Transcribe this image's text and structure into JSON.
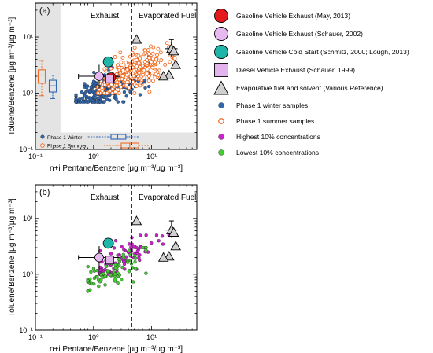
{
  "colors": {
    "exhaust_may": "#e41a1c",
    "exhaust_schauer2002": "#e8b8f0",
    "cold_start": "#1fb5a8",
    "diesel": "#e3b3ee",
    "evap": "#d0d0d0",
    "winter": "#2f67b1",
    "summer": "#f26b21",
    "highest": "#cc22cc",
    "lowest": "#44cc33",
    "shade": "#e4e4e4"
  },
  "legend": [
    {
      "label": "Gasoline Vehicle Exhaust (May, 2013)",
      "symbol": "circle-large",
      "color": "#e41a1c"
    },
    {
      "label": "Gasoline Vehicle Exhaust (Schauer, 2002)",
      "symbol": "circle-large",
      "color": "#e8b8f0"
    },
    {
      "label": "Gasoline Vehicle Cold Start (Schmitz, 2000; Lough, 2013)",
      "symbol": "circle-large",
      "color": "#1fb5a8"
    },
    {
      "label": "Diesel Vehicle Exhaust (Schauer, 1999)",
      "symbol": "square",
      "color": "#e3b3ee"
    },
    {
      "label": "Evaporative fuel and solvent (Various Reference)",
      "symbol": "triangle",
      "color": "#d0d0d0"
    },
    {
      "label": "Phase 1 winter samples",
      "symbol": "dot-filled",
      "color": "#2f67b1"
    },
    {
      "label": "Phase 1 summer samples",
      "symbol": "dot-open",
      "color": "#f26b21"
    },
    {
      "label": "Highest 10% concentrations",
      "symbol": "dot-filled",
      "color": "#cc22cc"
    },
    {
      "label": "Lowest 10% concentrations",
      "symbol": "dot-filled",
      "color": "#44cc33"
    }
  ],
  "chart_data": [
    {
      "panel_label": "(a)",
      "type": "scatter",
      "xlabel": "n+i Pentane/Benzene [μg m⁻³/μg m⁻³]",
      "ylabel": "Toluene/Benzene [μg m⁻³/μg m⁻³]",
      "xscale": "log",
      "yscale": "log",
      "xlim": [
        0.1,
        60
      ],
      "ylim": [
        0.1,
        40
      ],
      "x_ticks": [
        "10⁻¹",
        "10⁰",
        "10¹"
      ],
      "y_ticks": [
        "10⁻¹",
        "10⁰",
        "10¹"
      ],
      "divider_x": 4.5,
      "region_labels": [
        "Exhaust",
        "Evaporated Fuel"
      ],
      "inset_legend": [
        "Phase 1 Winter",
        "Phase 1 Summer"
      ],
      "sources": {
        "exhaust_may": {
          "x": 2.0,
          "y": 1.9
        },
        "exhaust_schauer2002": {
          "x": 1.25,
          "y": 2.0,
          "xerr": [
            0.55,
            2.8
          ],
          "yerr": [
            1.2,
            3.2
          ]
        },
        "cold_start": {
          "x": 1.8,
          "y": 3.6
        },
        "diesel": {
          "x": 1.9,
          "y": 1.8
        },
        "evap": [
          {
            "x": 5.5,
            "y": 9.0
          },
          {
            "x": 22,
            "y": 6.2,
            "xerr": [
              17,
              28
            ],
            "yerr": [
              4.5,
              9.0
            ]
          },
          {
            "x": 24,
            "y": 5.6
          },
          {
            "x": 26,
            "y": 3.2
          },
          {
            "x": 20,
            "y": 2.1
          },
          {
            "x": 16,
            "y": 2.0
          }
        ]
      },
      "box_stats": {
        "y_summer": {
          "min": 0.9,
          "q1": 1.5,
          "median": 2.1,
          "q3": 2.6,
          "max": 3.8
        },
        "y_winter": {
          "min": 0.8,
          "q1": 1.05,
          "median": 1.35,
          "q3": 1.7,
          "max": 2.1
        },
        "x_winter": {
          "min": 0.8,
          "q1": 2.0,
          "median": 2.6,
          "q3": 3.6,
          "max": 6.0
        },
        "x_summer": {
          "min": 1.5,
          "q1": 3.0,
          "median": 4.2,
          "q3": 6.0,
          "max": 9.0
        }
      },
      "series": [
        {
          "name": "Phase 1 winter samples",
          "n": 320,
          "x_geomean": 1.6,
          "y_geomean": 1.15,
          "x_range": [
            0.5,
            9.0
          ],
          "y_range": [
            0.7,
            4.5
          ]
        },
        {
          "name": "Phase 1 summer samples",
          "n": 280,
          "x_geomean": 4.5,
          "y_geomean": 2.3,
          "x_range": [
            1.2,
            25.0
          ],
          "y_range": [
            1.0,
            9.0
          ]
        }
      ]
    },
    {
      "panel_label": "(b)",
      "type": "scatter",
      "xlabel": "n+i Pentane/Benzene [μg m⁻³/μg m⁻³]",
      "ylabel": "Toluene/Benzene [μg m⁻³/μg m⁻³]",
      "xscale": "log",
      "yscale": "log",
      "xlim": [
        0.1,
        60
      ],
      "ylim": [
        0.1,
        40
      ],
      "x_ticks": [
        "10⁻¹",
        "10⁰",
        "10¹"
      ],
      "y_ticks": [
        "10⁻¹",
        "10⁰",
        "10¹"
      ],
      "divider_x": 4.5,
      "region_labels": [
        "Exhaust",
        "Evaporated Fuel"
      ],
      "series": [
        {
          "name": "Highest 10% concentrations",
          "n": 90,
          "x_geomean": 3.2,
          "y_geomean": 2.0,
          "x_range": [
            1.3,
            22.0
          ],
          "y_range": [
            1.0,
            5.0
          ]
        },
        {
          "name": "Lowest 10% concentrations",
          "n": 75,
          "x_geomean": 2.0,
          "y_geomean": 1.1,
          "x_range": [
            0.8,
            8.0
          ],
          "y_range": [
            0.5,
            3.0
          ]
        }
      ]
    }
  ]
}
